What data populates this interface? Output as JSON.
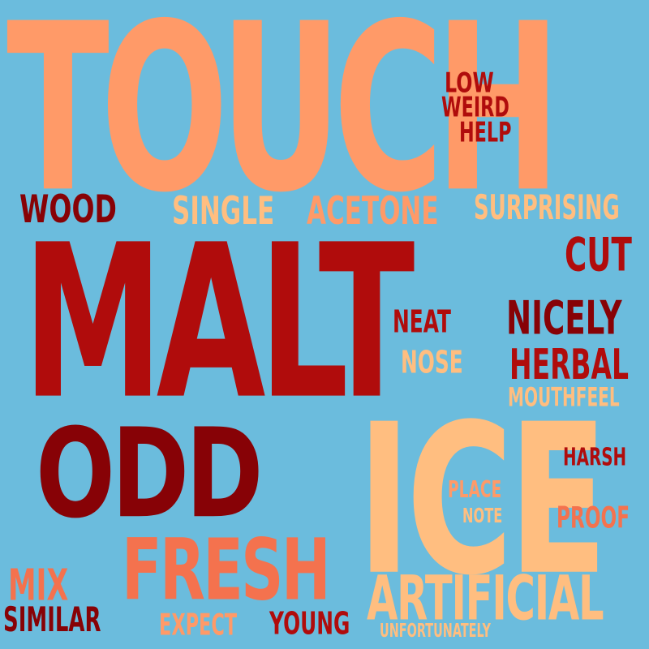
{
  "background_color": "#6bbcdd",
  "palette": {
    "peach": "#ff9a68",
    "light_peach": "#ffbe80",
    "coral": "#f4724e",
    "red": "#b00c0c",
    "dark_red": "#870206"
  },
  "words": {
    "touch": {
      "text": "TOUCH",
      "color": "#ff9a68"
    },
    "malt": {
      "text": "MALT",
      "color": "#b00c0c"
    },
    "ice": {
      "text": "ICE",
      "color": "#ffbe80"
    },
    "odd": {
      "text": "ODD",
      "color": "#870206"
    },
    "fresh": {
      "text": "FRESH",
      "color": "#f4724e"
    },
    "artificial": {
      "text": "ARTIFICIAL",
      "color": "#ffbe80"
    },
    "wood": {
      "text": "WOOD",
      "color": "#870206"
    },
    "single": {
      "text": "SINGLE",
      "color": "#ffbe80"
    },
    "acetone": {
      "text": "ACETONE",
      "color": "#ff9a68"
    },
    "surprising": {
      "text": "SURPRISING",
      "color": "#ffbe80"
    },
    "low": {
      "text": "LOW",
      "color": "#b00c0c"
    },
    "weird": {
      "text": "WEIRD",
      "color": "#b00c0c"
    },
    "help": {
      "text": "HELP",
      "color": "#b00c0c"
    },
    "cut": {
      "text": "CUT",
      "color": "#b00c0c"
    },
    "neat": {
      "text": "NEAT",
      "color": "#b00c0c"
    },
    "nicely": {
      "text": "NICELY",
      "color": "#870206"
    },
    "nose": {
      "text": "NOSE",
      "color": "#ffbe80"
    },
    "herbal": {
      "text": "HERBAL",
      "color": "#b00c0c"
    },
    "mouthfeel": {
      "text": "MOUTHFEEL",
      "color": "#ffbe80"
    },
    "harsh": {
      "text": "HARSH",
      "color": "#b00c0c"
    },
    "place": {
      "text": "PLACE",
      "color": "#ff9a68"
    },
    "note": {
      "text": "NOTE",
      "color": "#ffbe80"
    },
    "proof": {
      "text": "PROOF",
      "color": "#f4724e"
    },
    "mix": {
      "text": "MIX",
      "color": "#f4724e"
    },
    "similar": {
      "text": "SIMILAR",
      "color": "#870206"
    },
    "expect": {
      "text": "EXPECT",
      "color": "#ff9a68"
    },
    "young": {
      "text": "YOUNG",
      "color": "#b00c0c"
    },
    "unfortunately": {
      "text": "UNFORTUNATELY",
      "color": "#ffbe80"
    }
  }
}
